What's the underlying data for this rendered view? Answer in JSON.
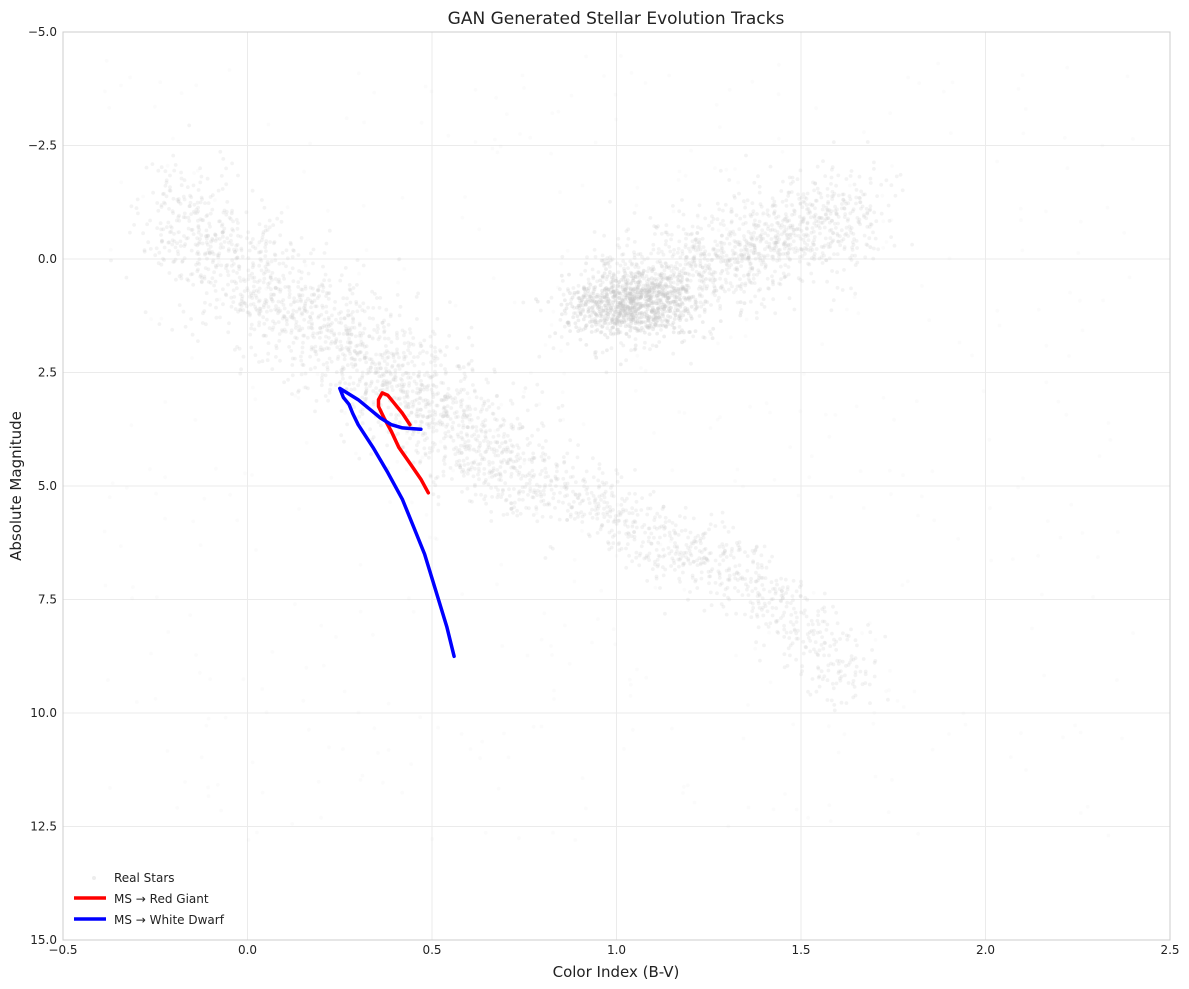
{
  "chart_data": {
    "type": "scatter",
    "title": "GAN Generated Stellar Evolution Tracks",
    "xlabel": "Color Index (B-V)",
    "ylabel": "Absolute Magnitude",
    "xlim": [
      -0.5,
      2.5
    ],
    "ylim": [
      15.0,
      -5.0
    ],
    "y_inverted": true,
    "grid": true,
    "x_ticks": [
      "−0.5",
      "0.0",
      "0.5",
      "1.0",
      "1.5",
      "2.0",
      "2.5"
    ],
    "x_tick_values": [
      -0.5,
      0.0,
      0.5,
      1.0,
      1.5,
      2.0,
      2.5
    ],
    "y_ticks": [
      "−5.0",
      "−2.5",
      "0.0",
      "2.5",
      "5.0",
      "7.5",
      "10.0",
      "12.5",
      "15.0"
    ],
    "y_tick_values": [
      -5.0,
      -2.5,
      0.0,
      2.5,
      5.0,
      7.5,
      10.0,
      12.5,
      15.0
    ],
    "legend_position": "lower-left",
    "series": [
      {
        "name": "Real Stars",
        "kind": "scatter",
        "color": "#cccccc",
        "description_regions": [
          {
            "region": "main sequence",
            "x": [
              -0.3,
              1.6
            ],
            "y": [
              -2.0,
              12.0
            ]
          },
          {
            "region": "red clump / giants",
            "x": [
              0.9,
              1.7
            ],
            "y": [
              -1.5,
              2.0
            ]
          }
        ]
      },
      {
        "name": "MS → Red Giant",
        "kind": "line",
        "color": "#ff0000",
        "x": [
          0.49,
          0.47,
          0.44,
          0.41,
          0.39,
          0.37,
          0.355,
          0.355,
          0.365,
          0.38,
          0.4,
          0.42,
          0.44
        ],
        "y": [
          5.15,
          4.85,
          4.5,
          4.15,
          3.8,
          3.5,
          3.25,
          3.1,
          2.95,
          3.0,
          3.2,
          3.4,
          3.65
        ]
      },
      {
        "name": "MS → White Dwarf",
        "kind": "line",
        "color": "#0000ff",
        "x": [
          0.56,
          0.54,
          0.51,
          0.48,
          0.45,
          0.42,
          0.38,
          0.34,
          0.3,
          0.285,
          0.275,
          0.26,
          0.25,
          0.27,
          0.3,
          0.33,
          0.36,
          0.39,
          0.42,
          0.45,
          0.47
        ],
        "y": [
          8.75,
          8.1,
          7.3,
          6.5,
          5.9,
          5.3,
          4.7,
          4.15,
          3.65,
          3.4,
          3.2,
          3.05,
          2.85,
          2.95,
          3.1,
          3.3,
          3.5,
          3.65,
          3.72,
          3.74,
          3.75
        ]
      }
    ]
  }
}
